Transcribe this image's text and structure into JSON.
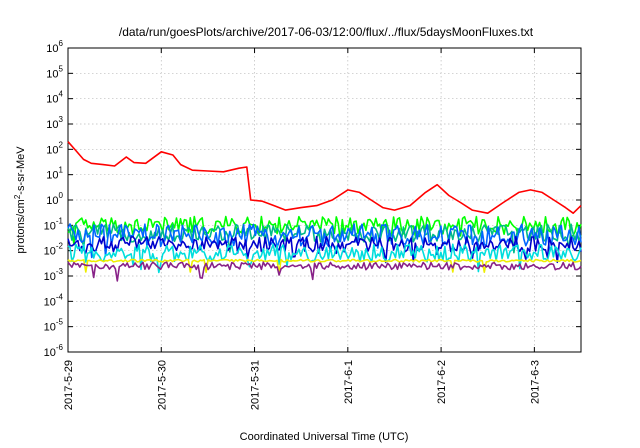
{
  "chart_data": {
    "type": "line",
    "title": "/data/run/goesPlots/archive/2017-06-03/12:00/flux/../flux/5daysMoonFluxes.txt",
    "xlabel": "Coordinated Universal Time (UTC)",
    "ylabel_parts": [
      "protons/cm",
      "2",
      "-s-sr-MeV"
    ],
    "x_scale": "time",
    "xlim": [
      "2017-05-29 00:00",
      "2017-06-03 12:00"
    ],
    "x_ticks": [
      {
        "label": "2017-5-29",
        "date": "2017-05-29"
      },
      {
        "label": "2017-5-30",
        "date": "2017-05-30"
      },
      {
        "label": "2017-5-31",
        "date": "2017-05-31"
      },
      {
        "label": "2017-6-1",
        "date": "2017-06-01"
      },
      {
        "label": "2017-6-2",
        "date": "2017-06-02"
      },
      {
        "label": "2017-6-3",
        "date": "2017-06-03"
      }
    ],
    "y_scale": "log",
    "ylim": [
      1e-06,
      1000000.0
    ],
    "y_ticks": [
      {
        "base": "10",
        "exp": "-6",
        "value": 1e-06
      },
      {
        "base": "10",
        "exp": "-5",
        "value": 1e-05
      },
      {
        "base": "10",
        "exp": "-4",
        "value": 0.0001
      },
      {
        "base": "10",
        "exp": "-3",
        "value": 0.001
      },
      {
        "base": "10",
        "exp": "-2",
        "value": 0.01
      },
      {
        "base": "10",
        "exp": "-1",
        "value": 0.1
      },
      {
        "base": "10",
        "exp": "0",
        "value": 1
      },
      {
        "base": "10",
        "exp": "1",
        "value": 10
      },
      {
        "base": "10",
        "exp": "2",
        "value": 100
      },
      {
        "base": "10",
        "exp": "3",
        "value": 1000
      },
      {
        "base": "10",
        "exp": "4",
        "value": 10000
      },
      {
        "base": "10",
        "exp": "5",
        "value": 100000
      },
      {
        "base": "10",
        "exp": "6",
        "value": 1000000
      }
    ],
    "grid": true,
    "legend": "none",
    "series": [
      {
        "color": "#ff0000",
        "points": [
          [
            "2017-05-29 00:00",
            200
          ],
          [
            "2017-05-29 02:00",
            90
          ],
          [
            "2017-05-29 04:00",
            40
          ],
          [
            "2017-05-29 06:00",
            28
          ],
          [
            "2017-05-29 09:00",
            25
          ],
          [
            "2017-05-29 12:00",
            22
          ],
          [
            "2017-05-29 15:00",
            50
          ],
          [
            "2017-05-29 17:00",
            30
          ],
          [
            "2017-05-29 20:00",
            28
          ],
          [
            "2017-05-30 00:00",
            80
          ],
          [
            "2017-05-30 03:00",
            60
          ],
          [
            "2017-05-30 05:00",
            25
          ],
          [
            "2017-05-30 08:00",
            15
          ],
          [
            "2017-05-30 12:00",
            14
          ],
          [
            "2017-05-30 16:00",
            13
          ],
          [
            "2017-05-30 20:00",
            18
          ],
          [
            "2017-05-30 22:00",
            20
          ],
          [
            "2017-05-30 23:00",
            1.0
          ],
          [
            "2017-05-31 02:00",
            0.9
          ],
          [
            "2017-05-31 05:00",
            0.6
          ],
          [
            "2017-05-31 08:00",
            0.4
          ],
          [
            "2017-05-31 12:00",
            0.5
          ],
          [
            "2017-05-31 16:00",
            0.6
          ],
          [
            "2017-05-31 20:00",
            1.0
          ],
          [
            "2017-06-01 00:00",
            2.5
          ],
          [
            "2017-06-01 03:00",
            2.0
          ],
          [
            "2017-06-01 06:00",
            1.0
          ],
          [
            "2017-06-01 09:00",
            0.5
          ],
          [
            "2017-06-01 12:00",
            0.4
          ],
          [
            "2017-06-01 16:00",
            0.6
          ],
          [
            "2017-06-01 20:00",
            2.0
          ],
          [
            "2017-06-01 23:00",
            4.0
          ],
          [
            "2017-06-02 02:00",
            1.5
          ],
          [
            "2017-06-02 05:00",
            0.8
          ],
          [
            "2017-06-02 08:00",
            0.4
          ],
          [
            "2017-06-02 12:00",
            0.3
          ],
          [
            "2017-06-02 16:00",
            0.8
          ],
          [
            "2017-06-02 20:00",
            2.0
          ],
          [
            "2017-06-02 23:00",
            2.5
          ],
          [
            "2017-06-03 02:00",
            2.0
          ],
          [
            "2017-06-03 05:00",
            1.0
          ],
          [
            "2017-06-03 08:00",
            0.5
          ],
          [
            "2017-06-03 10:00",
            0.3
          ],
          [
            "2017-06-03 12:00",
            0.6
          ]
        ]
      },
      {
        "color": "#00ff00",
        "base": 0.1,
        "spread": 0.35
      },
      {
        "color": "#00bb88",
        "base": 0.05,
        "spread": 0.35
      },
      {
        "color": "#0066ff",
        "base": 0.04,
        "spread": 0.45
      },
      {
        "color": "#0000cc",
        "base": 0.018,
        "spread": 0.3
      },
      {
        "color": "#00dddd",
        "base": 0.008,
        "spread": 0.35
      },
      {
        "color": "#eeee00",
        "base": 0.004,
        "spread": 0.05
      },
      {
        "color": "#882288",
        "base": 0.0025,
        "spread": 0.15
      }
    ]
  }
}
